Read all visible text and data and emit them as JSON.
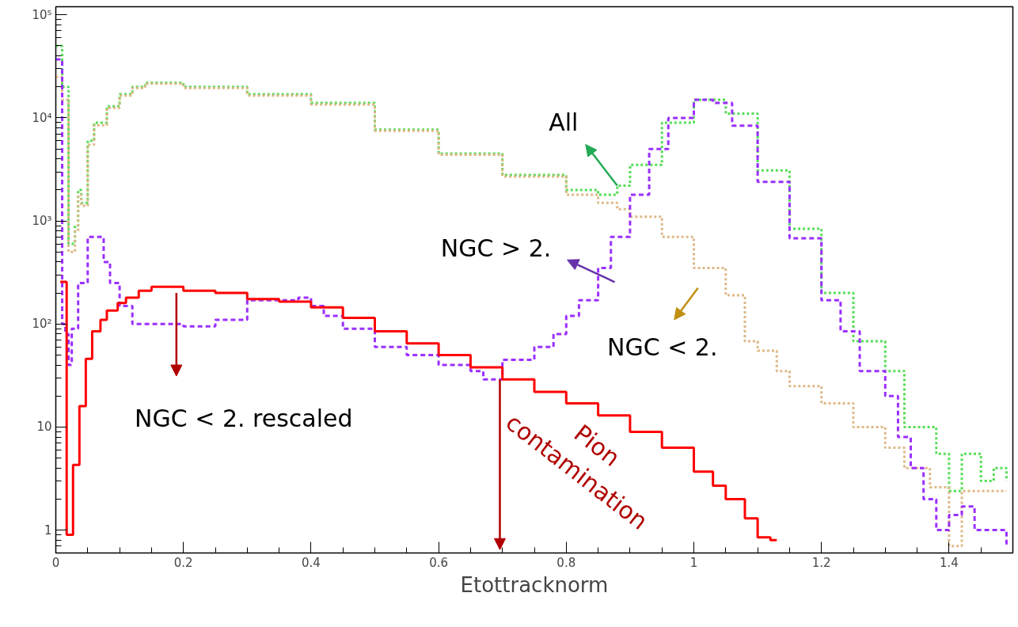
{
  "chart_data": {
    "type": "step",
    "xlabel": "Etottracknorm",
    "log": true,
    "grid": false,
    "xlim": [
      0,
      1.5
    ],
    "ylim": [
      0.6,
      120000
    ],
    "xticks": [
      0,
      0.2,
      0.4,
      0.6,
      0.8,
      1,
      1.2,
      1.4
    ],
    "yticks": [
      1,
      10,
      {
        "value": 100,
        "label": "10²"
      },
      {
        "value": 1000,
        "label": "10³"
      },
      {
        "value": 10000,
        "label": "10⁴"
      },
      {
        "value": 100000,
        "label": "10⁵"
      }
    ],
    "series": [
      {
        "color": "#55dd55",
        "line_style": "dotted",
        "x": [
          0,
          0.01,
          0.02,
          0.03,
          0.035,
          0.04,
          0.05,
          0.06,
          0.08,
          0.1,
          0.12,
          0.14,
          0.2,
          0.3,
          0.4,
          0.5,
          0.6,
          0.7,
          0.8,
          0.85,
          0.88,
          0.9,
          0.95,
          1.0,
          1.02,
          1.05,
          1.1,
          1.15,
          1.2,
          1.25,
          1.3,
          1.33,
          1.35,
          1.38,
          1.4,
          1.42,
          1.45,
          1.47,
          1.49
        ],
        "values": [
          50000,
          20000,
          600,
          900,
          2000,
          1500,
          6000,
          9000,
          13000,
          17000,
          20000,
          22000,
          20000,
          17000,
          14000,
          7700,
          4500,
          2800,
          2000,
          1800,
          2200,
          3500,
          9000,
          15000,
          15000,
          11000,
          3100,
          840,
          200,
          68,
          35,
          10,
          10,
          5.5,
          2.4,
          5.5,
          3,
          4,
          3
        ]
      },
      {
        "color": "#deb887",
        "line_style": "dotted",
        "x": [
          0,
          0.01,
          0.02,
          0.03,
          0.035,
          0.04,
          0.05,
          0.06,
          0.08,
          0.1,
          0.12,
          0.14,
          0.2,
          0.3,
          0.4,
          0.5,
          0.6,
          0.7,
          0.8,
          0.85,
          0.88,
          0.9,
          0.95,
          1.0,
          1.05,
          1.08,
          1.1,
          1.13,
          1.15,
          1.2,
          1.25,
          1.3,
          1.33,
          1.37,
          1.4,
          1.42,
          1.45,
          1.49
        ],
        "values": [
          25000,
          15000,
          500,
          800,
          1800,
          1400,
          5500,
          8500,
          12500,
          16500,
          19500,
          21500,
          19500,
          16500,
          13500,
          7500,
          4400,
          2700,
          1800,
          1500,
          1300,
          1100,
          700,
          350,
          190,
          68,
          55,
          35,
          25,
          17,
          10,
          6.3,
          4,
          2.6,
          0.7,
          2.4,
          2.4,
          2.4
        ]
      },
      {
        "color": "#9b30ff",
        "line_style": "dashed",
        "x": [
          0,
          0.01,
          0.015,
          0.02,
          0.025,
          0.035,
          0.05,
          0.065,
          0.075,
          0.085,
          0.1,
          0.12,
          0.14,
          0.2,
          0.25,
          0.3,
          0.35,
          0.38,
          0.4,
          0.42,
          0.45,
          0.5,
          0.55,
          0.6,
          0.65,
          0.67,
          0.7,
          0.75,
          0.78,
          0.8,
          0.82,
          0.85,
          0.87,
          0.9,
          0.93,
          0.96,
          1.0,
          1.03,
          1.06,
          1.1,
          1.15,
          1.2,
          1.23,
          1.26,
          1.3,
          1.32,
          1.34,
          1.36,
          1.38,
          1.4,
          1.42,
          1.44,
          1.46,
          1.48,
          1.49
        ],
        "values": [
          37000,
          100,
          80,
          40,
          90,
          250,
          700,
          700,
          400,
          250,
          150,
          100,
          100,
          95,
          110,
          170,
          170,
          180,
          150,
          120,
          90,
          60,
          50,
          40,
          35,
          29,
          45,
          60,
          80,
          120,
          170,
          350,
          700,
          1800,
          5000,
          10000,
          15000,
          14000,
          8400,
          2400,
          680,
          170,
          85,
          35,
          20,
          8,
          4,
          2,
          1,
          1.4,
          1.7,
          1,
          1,
          1,
          0.7
        ]
      },
      {
        "color": "#ff0000",
        "line_style": "solid",
        "x": [
          0.007,
          0.017,
          0.027,
          0.037,
          0.047,
          0.057,
          0.07,
          0.08,
          0.097,
          0.11,
          0.13,
          0.15,
          0.2,
          0.25,
          0.3,
          0.35,
          0.4,
          0.45,
          0.5,
          0.55,
          0.6,
          0.65,
          0.7,
          0.75,
          0.8,
          0.85,
          0.9,
          0.95,
          1.0,
          1.03,
          1.05,
          1.08,
          1.1,
          1.12,
          1.13
        ],
        "values": [
          257,
          0.9,
          4.3,
          16,
          46,
          85,
          110,
          135,
          160,
          180,
          210,
          230,
          210,
          200,
          175,
          165,
          145,
          115,
          85,
          65,
          50,
          38,
          29,
          22,
          17,
          13,
          9,
          6.3,
          3.7,
          2.7,
          2,
          1.3,
          0.85,
          0.8,
          0.8
        ]
      }
    ],
    "annotations": [
      {
        "text": "All",
        "x": 0.88,
        "y": 2200
      },
      "NGC > 2.",
      "NGC < 2.",
      "NGC < 2. rescaled",
      {
        "text": "Pion contamination",
        "x": 0.696,
        "y": 29
      }
    ]
  }
}
